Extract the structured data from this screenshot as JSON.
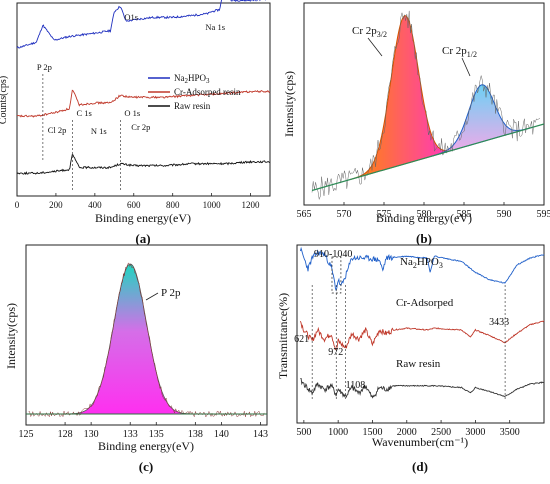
{
  "chart_data": [
    {
      "panel_label": "(a)",
      "type": "line",
      "xlabel": "Binding energy(eV)",
      "ylabel": "Counts(cps)",
      "xlim": [
        0,
        1300
      ],
      "x_ticks": [
        "0",
        "200",
        "400",
        "600",
        "800",
        "1000",
        "1200"
      ],
      "legend": [
        "Na2HPO3",
        "Cr-Adsorped resin",
        "Raw resin"
      ],
      "legend_colors": [
        "#1f2fbf",
        "#c0392b",
        "#111111"
      ],
      "annotations": [
        {
          "label": "O1s",
          "x": 531
        },
        {
          "label": "Na 1s",
          "x": 1071
        },
        {
          "label": "P 2p",
          "x": 133
        },
        {
          "label": "C 1s",
          "x": 285
        },
        {
          "label": "O 1s",
          "x": 531
        },
        {
          "label": "Cl 2p",
          "x": 199
        },
        {
          "label": "N 1s",
          "x": 400
        },
        {
          "label": "Cr 2p",
          "x": 577
        }
      ],
      "series": [
        {
          "name": "Na2HPO3",
          "color": "#1f2fbf",
          "x": [
            0,
            40,
            70,
            100,
            133,
            190,
            270,
            350,
            420,
            480,
            500,
            531,
            560,
            620,
            700,
            800,
            900,
            980,
            1000,
            1040,
            1071,
            1100,
            1200,
            1300
          ],
          "y": [
            0.78,
            0.79,
            0.8,
            0.81,
            0.9,
            0.82,
            0.84,
            0.85,
            0.86,
            0.87,
            0.97,
            1.0,
            0.92,
            0.93,
            0.94,
            0.94,
            0.95,
            0.96,
            0.97,
            0.98,
            1.12,
            1.03,
            1.03,
            1.04
          ]
        },
        {
          "name": "Cr-Adsorped resin",
          "color": "#c0392b",
          "x": [
            0,
            100,
            199,
            270,
            285,
            320,
            400,
            480,
            531,
            577,
            640,
            760,
            900,
            1071,
            1200,
            1300
          ],
          "y": [
            0.42,
            0.42,
            0.44,
            0.46,
            0.56,
            0.48,
            0.49,
            0.49,
            0.53,
            0.52,
            0.52,
            0.52,
            0.53,
            0.54,
            0.55,
            0.55
          ]
        },
        {
          "name": "Raw resin",
          "color": "#111111",
          "x": [
            0,
            100,
            199,
            270,
            285,
            320,
            400,
            480,
            531,
            600,
            760,
            900,
            1071,
            1200,
            1300
          ],
          "y": [
            0.12,
            0.12,
            0.13,
            0.14,
            0.22,
            0.15,
            0.15,
            0.15,
            0.17,
            0.16,
            0.16,
            0.17,
            0.17,
            0.18,
            0.18
          ]
        }
      ]
    },
    {
      "panel_label": "(b)",
      "type": "area",
      "xlabel": "Binding energy(eV)",
      "ylabel": "Intensity(cps)",
      "xlim": [
        565,
        595
      ],
      "x_ticks": [
        "565",
        "570",
        "575",
        "580",
        "585",
        "590",
        "595"
      ],
      "peaks": [
        {
          "label": "Cr 2p",
          "sub": "3/2",
          "center": 577.6,
          "sigma": 1.7,
          "height": 0.78
        },
        {
          "label": "Cr 2p",
          "sub": "1/2",
          "center": 587.2,
          "sigma": 1.6,
          "height": 0.3
        }
      ],
      "baseline": {
        "x": [
          566,
          595
        ],
        "y": [
          0.05,
          0.4
        ]
      }
    },
    {
      "panel_label": "(c)",
      "type": "area",
      "xlabel": "Binding energy(eV)",
      "ylabel": "Intensity(cps)",
      "xlim": [
        125,
        143.5
      ],
      "x_ticks": [
        "125",
        "128",
        "130",
        "133",
        "135",
        "138",
        "140",
        "143"
      ],
      "peaks": [
        {
          "label": "P 2p",
          "center": 133.0,
          "sigma": 1.25,
          "height": 1.0
        }
      ],
      "baseline": {
        "x": [
          125,
          143.5
        ],
        "y": [
          0.0,
          0.0
        ]
      }
    },
    {
      "panel_label": "(d)",
      "type": "line",
      "xlabel": "Wavenumber(cm⁻¹)",
      "ylabel": "Transmittance(%)",
      "xlim": [
        400,
        4000
      ],
      "x_ticks": [
        "500",
        "1000",
        "1500",
        "2000",
        "2500",
        "3000",
        "3500"
      ],
      "annotations": [
        {
          "label": "910-1040"
        },
        {
          "label": "621",
          "x": 621
        },
        {
          "label": "972",
          "x": 972
        },
        {
          "label": "1108",
          "x": 1108
        },
        {
          "label": "3433",
          "x": 3433
        }
      ],
      "series": [
        {
          "name": "Na2HPO3",
          "color": "#1f5fc9",
          "x": [
            450,
            500,
            560,
            621,
            700,
            800,
            900,
            972,
            1000,
            1040,
            1108,
            1200,
            1400,
            1600,
            1650,
            1700,
            2000,
            2300,
            2340,
            2400,
            2800,
            3000,
            3200,
            3433,
            3600,
            3800,
            4000
          ],
          "y": [
            0.95,
            0.9,
            0.84,
            0.9,
            0.93,
            0.92,
            0.85,
            0.72,
            0.78,
            0.74,
            0.8,
            0.9,
            0.9,
            0.89,
            0.83,
            0.9,
            0.91,
            0.9,
            0.82,
            0.91,
            0.88,
            0.82,
            0.78,
            0.76,
            0.86,
            0.9,
            0.92
          ]
        },
        {
          "name": "Cr-Adsorped",
          "color": "#c0392b",
          "x": [
            450,
            500,
            621,
            700,
            800,
            900,
            972,
            1000,
            1108,
            1200,
            1300,
            1400,
            1500,
            1600,
            1700,
            1800,
            2000,
            2300,
            2400,
            2800,
            2930,
            3000,
            3200,
            3433,
            3600,
            3800,
            4000
          ],
          "y": [
            0.55,
            0.5,
            0.44,
            0.5,
            0.45,
            0.48,
            0.38,
            0.44,
            0.4,
            0.48,
            0.45,
            0.5,
            0.42,
            0.5,
            0.48,
            0.5,
            0.51,
            0.5,
            0.51,
            0.5,
            0.46,
            0.5,
            0.47,
            0.43,
            0.48,
            0.53,
            0.55
          ]
        },
        {
          "name": "Raw resin",
          "color": "#333333",
          "x": [
            450,
            500,
            621,
            700,
            800,
            900,
            972,
            1000,
            1108,
            1200,
            1300,
            1400,
            1500,
            1600,
            1700,
            1800,
            2000,
            2300,
            2400,
            2800,
            2930,
            3000,
            3200,
            3433,
            3600,
            3800,
            4000
          ],
          "y": [
            0.22,
            0.2,
            0.15,
            0.2,
            0.17,
            0.19,
            0.14,
            0.17,
            0.13,
            0.18,
            0.15,
            0.19,
            0.12,
            0.18,
            0.17,
            0.19,
            0.19,
            0.19,
            0.19,
            0.18,
            0.15,
            0.18,
            0.16,
            0.13,
            0.17,
            0.2,
            0.21
          ]
        }
      ]
    }
  ]
}
